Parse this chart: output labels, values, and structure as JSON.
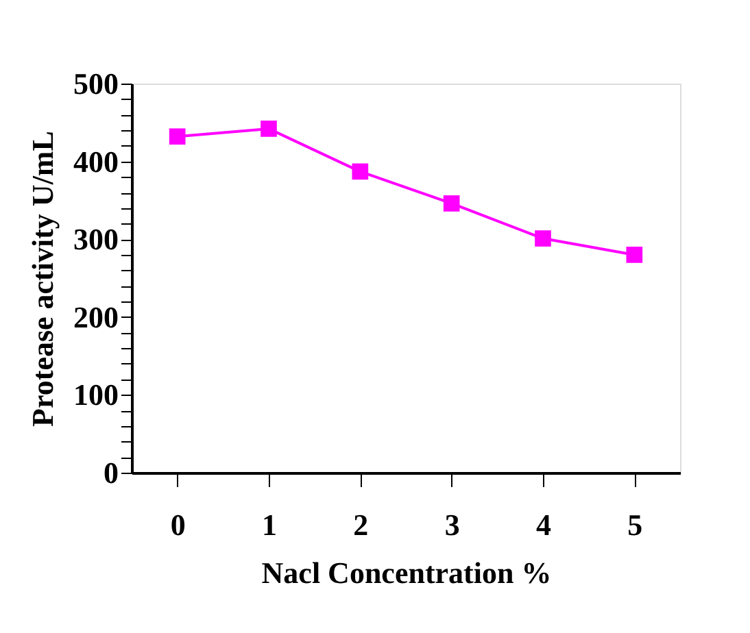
{
  "chart_data": {
    "type": "line",
    "xlabel": "Nacl Concentration %",
    "ylabel": "Protease activity U/mL",
    "categories": [
      "0",
      "1",
      "2",
      "3",
      "4",
      "5"
    ],
    "series": [
      {
        "color": "#ff00ff",
        "values": [
          432,
          442,
          387,
          346,
          301,
          280
        ]
      }
    ],
    "ylim": [
      0,
      500
    ],
    "yticks": [
      0,
      {
        "value": 20,
        "label": null
      },
      {
        "value": 40,
        "label": null
      },
      {
        "value": 60,
        "label": null
      },
      {
        "value": 80,
        "label": null
      },
      100,
      {
        "value": 120,
        "label": null
      },
      {
        "value": 140,
        "label": null
      },
      {
        "value": 160,
        "label": null
      },
      {
        "value": 180,
        "label": null
      },
      200,
      {
        "value": 220,
        "label": null
      },
      {
        "value": 240,
        "label": null
      },
      {
        "value": 260,
        "label": null
      },
      {
        "value": 280,
        "label": null
      },
      300,
      {
        "value": 320,
        "label": null
      },
      {
        "value": 340,
        "label": null
      },
      {
        "value": 360,
        "label": null
      },
      {
        "value": 380,
        "label": null
      },
      400,
      {
        "value": 420,
        "label": null
      },
      {
        "value": 440,
        "label": null
      },
      {
        "value": 460,
        "label": null
      },
      {
        "value": 480,
        "label": null
      },
      500
    ],
    "marker": "square",
    "line_style": "solid",
    "grid": false
  }
}
